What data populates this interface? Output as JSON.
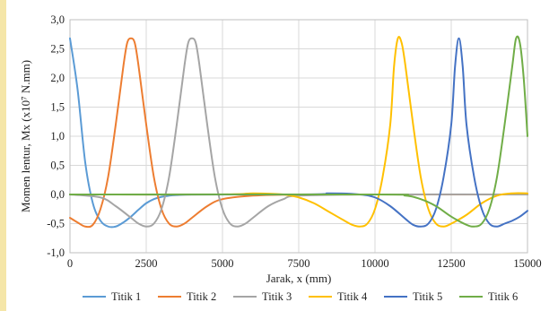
{
  "colors": {
    "left_accent": "#f5e6a8",
    "grid": "#d9d9d9",
    "axis": "#bfbfbf"
  },
  "chart_data": {
    "type": "line",
    "title": "",
    "xlabel": "Jarak, x (mm)",
    "ylabel": "Momen lentur, Mx (x10⁷ N.mm)",
    "xlim": [
      0,
      15000
    ],
    "ylim": [
      -1.0,
      3.0
    ],
    "x_ticks": [
      0,
      2500,
      5000,
      7500,
      10000,
      12500,
      15000
    ],
    "x_tick_labels": [
      "0",
      "2500",
      "5000",
      "7500",
      "10000",
      "12500",
      "15000"
    ],
    "y_ticks": [
      -1.0,
      -0.5,
      0.0,
      0.5,
      1.0,
      1.5,
      2.0,
      2.5,
      3.0
    ],
    "y_tick_labels": [
      "-1,0",
      "-0,5",
      "0,0",
      "0,5",
      "1,0",
      "1,5",
      "2,0",
      "2,5",
      "3,0"
    ],
    "grid": true,
    "legend_position": "bottom",
    "series": [
      {
        "name": "Titik 1",
        "color": "#5b9bd5",
        "x": [
          0,
          250,
          500,
          750,
          1000,
          1250,
          1500,
          1750,
          2000,
          2250,
          2500,
          2750,
          3000,
          3250,
          3500,
          4000,
          5000,
          7500,
          10000,
          12500,
          15000
        ],
        "y": [
          2.68,
          1.8,
          0.55,
          -0.15,
          -0.45,
          -0.55,
          -0.55,
          -0.48,
          -0.38,
          -0.26,
          -0.15,
          -0.08,
          -0.04,
          -0.02,
          -0.01,
          0.0,
          0.0,
          0.0,
          0.0,
          0.0,
          0.0
        ]
      },
      {
        "name": "Titik 2",
        "color": "#ed7d31",
        "x": [
          0,
          250,
          500,
          750,
          1000,
          1250,
          1500,
          1750,
          1875,
          2000,
          2125,
          2250,
          2500,
          2750,
          3000,
          3250,
          3500,
          3750,
          4000,
          4500,
          5000,
          6000,
          7500,
          10000,
          15000
        ],
        "y": [
          -0.4,
          -0.48,
          -0.55,
          -0.52,
          -0.25,
          0.3,
          1.2,
          2.2,
          2.6,
          2.68,
          2.6,
          2.2,
          1.2,
          0.3,
          -0.25,
          -0.5,
          -0.55,
          -0.5,
          -0.4,
          -0.2,
          -0.08,
          -0.02,
          0.0,
          0.0,
          0.0
        ]
      },
      {
        "name": "Titik 3",
        "color": "#a5a5a5",
        "x": [
          0,
          1000,
          1500,
          2000,
          2250,
          2500,
          2750,
          3000,
          3250,
          3500,
          3750,
          3875,
          4000,
          4125,
          4250,
          4500,
          4750,
          5000,
          5250,
          5500,
          5750,
          6000,
          6500,
          7000,
          7500,
          10000,
          15000
        ],
        "y": [
          0.0,
          -0.05,
          -0.2,
          -0.4,
          -0.5,
          -0.55,
          -0.5,
          -0.25,
          0.3,
          1.2,
          2.2,
          2.6,
          2.68,
          2.6,
          2.2,
          1.2,
          0.3,
          -0.25,
          -0.5,
          -0.55,
          -0.5,
          -0.4,
          -0.2,
          -0.08,
          -0.02,
          0.0,
          0.0
        ]
      },
      {
        "name": "Titik 4",
        "color": "#ffc000",
        "x": [
          0,
          5000,
          6000,
          7000,
          7500,
          8000,
          8500,
          9000,
          9250,
          9500,
          9750,
          10000,
          10250,
          10500,
          10625,
          10750,
          10875,
          11000,
          11250,
          11500,
          11750,
          12000,
          12250,
          12500,
          13000,
          13500,
          14000,
          14500,
          15000
        ],
        "y": [
          0.0,
          0.0,
          0.02,
          0.0,
          -0.05,
          -0.15,
          -0.3,
          -0.45,
          -0.52,
          -0.55,
          -0.5,
          -0.25,
          0.3,
          1.2,
          2.2,
          2.68,
          2.6,
          2.2,
          1.2,
          0.3,
          -0.25,
          -0.5,
          -0.55,
          -0.5,
          -0.35,
          -0.15,
          -0.02,
          0.02,
          0.02
        ]
      },
      {
        "name": "Titik 5",
        "color": "#4472c4",
        "x": [
          0,
          7500,
          8500,
          9500,
          10000,
          10500,
          11000,
          11250,
          11500,
          11750,
          12000,
          12250,
          12500,
          12625,
          12750,
          12875,
          13000,
          13250,
          13500,
          13750,
          14000,
          14250,
          14500,
          14750,
          15000
        ],
        "y": [
          0.0,
          0.0,
          0.02,
          0.0,
          -0.05,
          -0.2,
          -0.42,
          -0.52,
          -0.55,
          -0.5,
          -0.25,
          0.3,
          1.2,
          2.2,
          2.68,
          2.2,
          1.2,
          0.3,
          -0.25,
          -0.5,
          -0.55,
          -0.5,
          -0.45,
          -0.38,
          -0.28
        ]
      },
      {
        "name": "Titik 6",
        "color": "#70ad47",
        "x": [
          0,
          10000,
          11000,
          11500,
          12000,
          12500,
          13000,
          13250,
          13500,
          13750,
          14000,
          14250,
          14500,
          14625,
          14750,
          14875,
          15000
        ],
        "y": [
          0.0,
          0.0,
          -0.02,
          -0.08,
          -0.2,
          -0.38,
          -0.52,
          -0.55,
          -0.5,
          -0.25,
          0.3,
          1.2,
          2.2,
          2.68,
          2.6,
          2.0,
          1.0
        ]
      }
    ]
  }
}
